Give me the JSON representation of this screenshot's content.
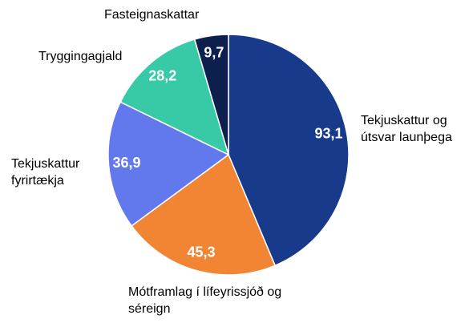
{
  "chart_data": {
    "type": "pie",
    "categories": [
      "Tekjuskattur og útsvar launþega",
      "Mótframlag í lífeyrissjóð og séreign",
      "Tekjuskattur fyrirtækja",
      "Tryggingagjald",
      "Fasteignaskattar"
    ],
    "values": [
      93.1,
      45.3,
      36.9,
      28.2,
      9.7
    ],
    "value_labels": [
      "93,1",
      "45,3",
      "36,9",
      "28,2",
      "9,7"
    ],
    "colors": [
      "#173a8b",
      "#f28534",
      "#6279ee",
      "#38c9a7",
      "#0d1f4d"
    ]
  }
}
